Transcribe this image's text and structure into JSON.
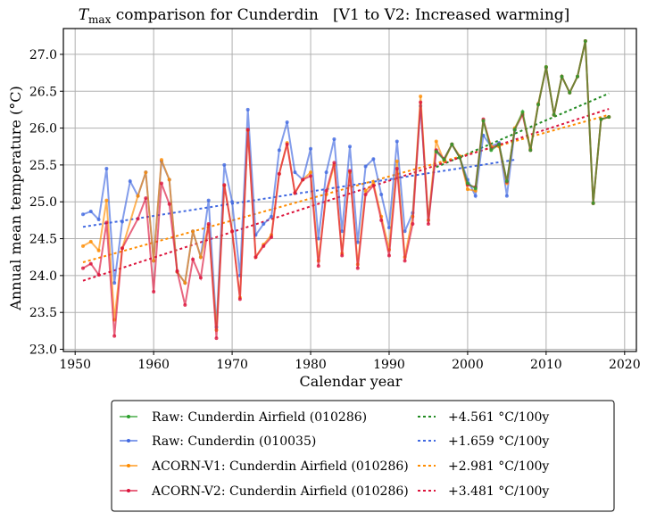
{
  "chart_data": {
    "type": "line",
    "title_prefix": "T",
    "title_subscript": "max",
    "title_rest": " comparison for Cunderdin   [V1 to V2: Increased warming]",
    "xlabel": "Calendar year",
    "ylabel": "Annual mean temperature (°C)",
    "xlim": [
      1948.5,
      2021.5
    ],
    "ylim": [
      22.97,
      27.35
    ],
    "xticks": [
      1950,
      1960,
      1970,
      1980,
      1990,
      2000,
      2010,
      2020
    ],
    "xtick_labels": [
      "1950",
      "1960",
      "1970",
      "1980",
      "1990",
      "2000",
      "2010",
      "2020"
    ],
    "yticks": [
      23.0,
      23.5,
      24.0,
      24.5,
      25.0,
      25.5,
      26.0,
      26.5,
      27.0
    ],
    "ytick_labels": [
      "23.0",
      "23.5",
      "24.0",
      "24.5",
      "25.0",
      "25.5",
      "26.0",
      "26.5",
      "27.0"
    ],
    "grid": true,
    "legend_placement": "below",
    "series": [
      {
        "name": "Raw: Cunderdin (010035)",
        "color": "#4169e1",
        "x": [
          1951,
          1952,
          1953,
          1954,
          1955,
          1956,
          1957,
          1958,
          1959,
          1960,
          1961,
          1962,
          1963,
          1964,
          1965,
          1966,
          1967,
          1968,
          1969,
          1970,
          1971,
          1972,
          1973,
          1974,
          1975,
          1976,
          1977,
          1978,
          1979,
          1980,
          1981,
          1982,
          1983,
          1984,
          1985,
          1986,
          1987,
          1988,
          1989,
          1990,
          1991,
          1992,
          1993,
          1994,
          1995,
          1996,
          1997,
          1998,
          1999,
          2000,
          2001,
          2002,
          2003,
          2004,
          2005,
          2006
        ],
        "y": [
          24.83,
          24.87,
          24.76,
          25.45,
          23.9,
          24.73,
          25.28,
          25.08,
          25.4,
          24.2,
          25.55,
          25.3,
          24.05,
          23.9,
          24.6,
          24.25,
          25.02,
          23.3,
          25.5,
          25.0,
          24.0,
          26.25,
          24.55,
          24.7,
          24.8,
          25.7,
          26.08,
          25.4,
          25.3,
          25.72,
          24.5,
          25.4,
          25.85,
          24.6,
          25.75,
          24.45,
          25.48,
          25.58,
          25.1,
          24.65,
          25.82,
          24.6,
          24.85,
          26.3,
          24.75,
          25.7,
          25.58,
          25.78,
          25.6,
          25.3,
          25.08,
          25.9,
          25.75,
          25.8,
          25.08,
          25.97
        ]
      },
      {
        "name": "ACORN-V1: Cunderdin Airfield (010286)",
        "color": "#ff8c00",
        "x": [
          1951,
          1952,
          1953,
          1954,
          1955,
          1956,
          1958,
          1959,
          1960,
          1961,
          1962,
          1963,
          1964,
          1965,
          1966,
          1967,
          1968,
          1969,
          1970,
          1971,
          1972,
          1973,
          1974,
          1975,
          1976,
          1977,
          1978,
          1979,
          1980,
          1981,
          1982,
          1983,
          1984,
          1985,
          1986,
          1987,
          1988,
          1989,
          1990,
          1991,
          1992,
          1993,
          1994,
          1995,
          1996,
          1997,
          1998,
          1999,
          2000,
          2001,
          2002,
          2003,
          2004,
          2005,
          2006,
          2007,
          2008,
          2009,
          2010,
          2011,
          2012,
          2013,
          2014,
          2015,
          2016,
          2017,
          2018
        ],
        "y": [
          24.4,
          24.46,
          24.34,
          25.02,
          23.4,
          24.37,
          25.08,
          25.4,
          24.2,
          25.57,
          25.3,
          24.05,
          23.9,
          24.6,
          24.25,
          24.68,
          23.26,
          25.22,
          24.6,
          23.7,
          25.97,
          24.25,
          24.42,
          24.55,
          25.38,
          25.8,
          25.12,
          25.3,
          25.4,
          24.2,
          25.1,
          25.5,
          24.3,
          25.4,
          24.15,
          25.15,
          25.25,
          24.8,
          24.35,
          25.55,
          24.25,
          24.8,
          26.43,
          24.75,
          25.82,
          25.55,
          25.78,
          25.62,
          25.17,
          25.15,
          26.1,
          25.75,
          25.75,
          25.25,
          26.0,
          26.2,
          25.72,
          26.33,
          26.83,
          26.18,
          26.7,
          26.48,
          26.7,
          27.18,
          24.98,
          26.12,
          26.15
        ]
      },
      {
        "name": "ACORN-V2: Cunderdin Airfield (010286)",
        "color": "#dc143c",
        "x": [
          1951,
          1952,
          1953,
          1954,
          1955,
          1956,
          1958,
          1959,
          1960,
          1961,
          1962,
          1963,
          1964,
          1965,
          1966,
          1967,
          1968,
          1969,
          1970,
          1971,
          1972,
          1973,
          1974,
          1975,
          1976,
          1977,
          1978,
          1979,
          1980,
          1981,
          1982,
          1983,
          1984,
          1985,
          1986,
          1987,
          1988,
          1989,
          1990,
          1991,
          1992,
          1993,
          1994,
          1995,
          1996,
          1997,
          1998,
          1999,
          2000,
          2001,
          2002,
          2003,
          2004,
          2005,
          2006,
          2007,
          2008,
          2009,
          2010,
          2011,
          2012,
          2013,
          2014,
          2015,
          2016,
          2017,
          2018
        ],
        "y": [
          24.1,
          24.16,
          24.01,
          24.72,
          23.18,
          24.37,
          24.77,
          25.05,
          23.78,
          25.25,
          24.97,
          24.06,
          23.6,
          24.22,
          23.97,
          24.7,
          23.15,
          25.23,
          24.6,
          23.68,
          25.98,
          24.25,
          24.4,
          24.52,
          25.38,
          25.78,
          25.12,
          25.3,
          25.35,
          24.13,
          25.15,
          25.53,
          24.27,
          25.42,
          24.1,
          25.1,
          25.22,
          24.75,
          24.27,
          25.45,
          24.2,
          24.7,
          26.35,
          24.7,
          25.7,
          25.58,
          25.78,
          25.6,
          25.23,
          25.2,
          26.12,
          25.72,
          25.78,
          25.27,
          25.98,
          26.18,
          25.7,
          26.32,
          26.82,
          26.18,
          26.7,
          26.48,
          26.7,
          27.18,
          24.98,
          26.12,
          26.15
        ]
      },
      {
        "name": "Raw: Cunderdin Airfield (010286)",
        "color": "#2ca02c",
        "x": [
          1996,
          1997,
          1998,
          1999,
          2000,
          2001,
          2002,
          2003,
          2004,
          2005,
          2006,
          2007,
          2008,
          2009,
          2010,
          2011,
          2012,
          2013,
          2014,
          2015,
          2016,
          2017,
          2018
        ],
        "y": [
          25.68,
          25.57,
          25.78,
          25.6,
          25.25,
          25.18,
          26.1,
          25.7,
          25.78,
          25.28,
          25.98,
          26.22,
          25.7,
          26.32,
          26.83,
          26.18,
          26.7,
          26.48,
          26.7,
          27.18,
          24.98,
          26.12,
          26.15
        ]
      }
    ],
    "trends": [
      {
        "label": "+4.561 °C/100y",
        "color": "#228b22",
        "x": [
          1996,
          2018
        ],
        "y": [
          25.47,
          26.47
        ]
      },
      {
        "label": "+1.659 °C/100y",
        "color": "#4169e1",
        "x": [
          1951,
          2006
        ],
        "y": [
          24.66,
          25.57
        ]
      },
      {
        "label": "+2.981 °C/100y",
        "color": "#ff8c00",
        "x": [
          1951,
          2018
        ],
        "y": [
          24.18,
          26.18
        ]
      },
      {
        "label": "+3.481 °C/100y",
        "color": "#dc143c",
        "x": [
          1951,
          2018
        ],
        "y": [
          23.93,
          26.26
        ]
      }
    ],
    "legend": {
      "left": [
        {
          "label": "Raw: Cunderdin Airfield (010286)",
          "color": "#2ca02c"
        },
        {
          "label": "Raw: Cunderdin (010035)",
          "color": "#4169e1"
        },
        {
          "label": "ACORN-V1: Cunderdin Airfield (010286)",
          "color": "#ff8c00"
        },
        {
          "label": "ACORN-V2: Cunderdin Airfield (010286)",
          "color": "#dc143c"
        }
      ],
      "right": [
        {
          "label": "+4.561 °C/100y",
          "color": "#228b22"
        },
        {
          "label": "+1.659 °C/100y",
          "color": "#4169e1"
        },
        {
          "label": "+2.981 °C/100y",
          "color": "#ff8c00"
        },
        {
          "label": "+3.481 °C/100y",
          "color": "#dc143c"
        }
      ]
    }
  }
}
